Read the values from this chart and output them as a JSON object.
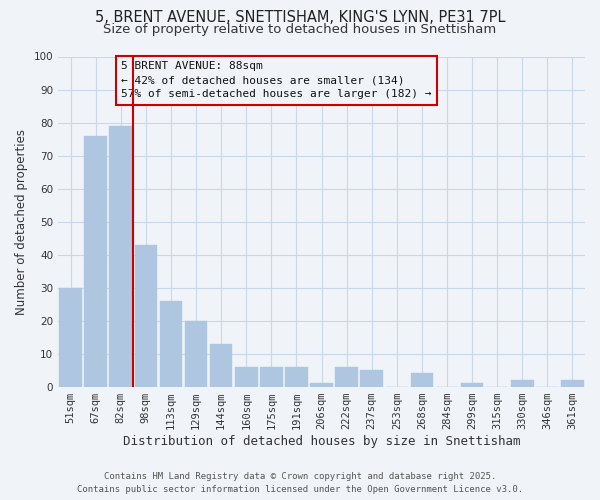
{
  "title": "5, BRENT AVENUE, SNETTISHAM, KING'S LYNN, PE31 7PL",
  "subtitle": "Size of property relative to detached houses in Snettisham",
  "xlabel": "Distribution of detached houses by size in Snettisham",
  "ylabel": "Number of detached properties",
  "categories": [
    "51sqm",
    "67sqm",
    "82sqm",
    "98sqm",
    "113sqm",
    "129sqm",
    "144sqm",
    "160sqm",
    "175sqm",
    "191sqm",
    "206sqm",
    "222sqm",
    "237sqm",
    "253sqm",
    "268sqm",
    "284sqm",
    "299sqm",
    "315sqm",
    "330sqm",
    "346sqm",
    "361sqm"
  ],
  "values": [
    30,
    76,
    79,
    43,
    26,
    20,
    13,
    6,
    6,
    6,
    1,
    6,
    5,
    0,
    4,
    0,
    1,
    0,
    2,
    0,
    2
  ],
  "bar_color": "#aec6e0",
  "bar_edgecolor": "#aec6e0",
  "vline_color": "#cc0000",
  "ylim": [
    0,
    100
  ],
  "yticks": [
    0,
    10,
    20,
    30,
    40,
    50,
    60,
    70,
    80,
    90,
    100
  ],
  "grid_color": "#c8d8e8",
  "background_color": "#f0f4f8",
  "annotation_title": "5 BRENT AVENUE: 88sqm",
  "annotation_line2": "← 42% of detached houses are smaller (134)",
  "annotation_line3": "57% of semi-detached houses are larger (182) →",
  "annotation_box_edgecolor": "#cc0000",
  "footer_line1": "Contains HM Land Registry data © Crown copyright and database right 2025.",
  "footer_line2": "Contains public sector information licensed under the Open Government Licence v3.0.",
  "title_fontsize": 10.5,
  "subtitle_fontsize": 9.5,
  "xlabel_fontsize": 9,
  "ylabel_fontsize": 8.5,
  "tick_fontsize": 7.5,
  "annotation_fontsize": 8,
  "footer_fontsize": 6.5
}
